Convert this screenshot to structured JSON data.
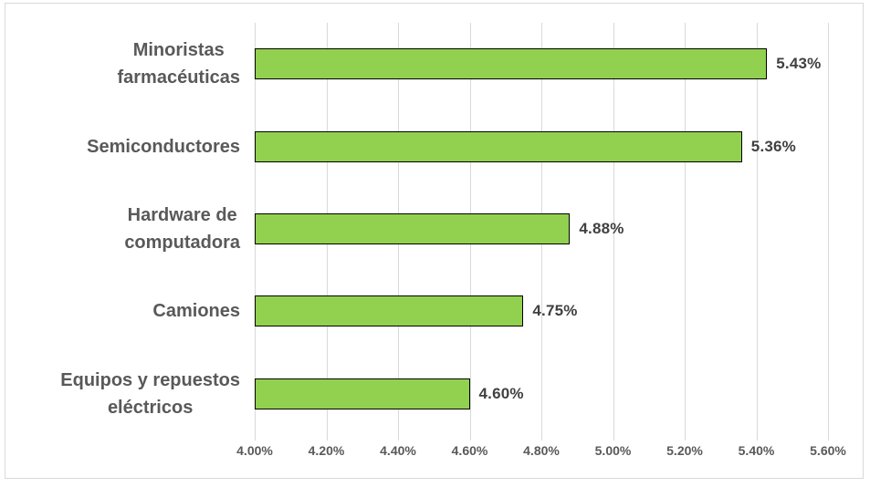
{
  "chart_data": {
    "type": "bar",
    "orientation": "horizontal",
    "title": "",
    "xlabel": "",
    "ylabel": "",
    "categories": [
      "Minoristas farmacéuticas",
      "Semiconductores",
      "Hardware de computadora",
      "Camiones",
      "Equipos y repuestos eléctricos"
    ],
    "category_display_lines": [
      [
        "Minoristas",
        "farmacéuticas"
      ],
      [
        "Semiconductores"
      ],
      [
        "Hardware de",
        "computadora"
      ],
      [
        "Camiones"
      ],
      [
        "Equipos y repuestos",
        "eléctricos"
      ]
    ],
    "values": [
      5.43,
      5.36,
      4.88,
      4.75,
      4.6
    ],
    "value_labels": [
      "5.43%",
      "5.36%",
      "4.88%",
      "4.75%",
      "4.60%"
    ],
    "xlim": [
      4.0,
      5.6
    ],
    "x_ticks": [
      4.0,
      4.2,
      4.4,
      4.6,
      4.8,
      5.0,
      5.2,
      5.4,
      5.6
    ],
    "x_tick_labels": [
      "4.00%",
      "4.20%",
      "4.40%",
      "4.60%",
      "4.80%",
      "5.00%",
      "5.20%",
      "5.40%",
      "5.60%"
    ],
    "grid": true,
    "legend": false,
    "colors": {
      "bar_fill": "#92D050",
      "bar_border": "#000000",
      "gridline": "#D9D9D9",
      "frame_border": "#D9D9D9",
      "category_label": "#595959",
      "tick_label": "#595959",
      "value_label": "#404040",
      "background": "#FFFFFF"
    }
  }
}
